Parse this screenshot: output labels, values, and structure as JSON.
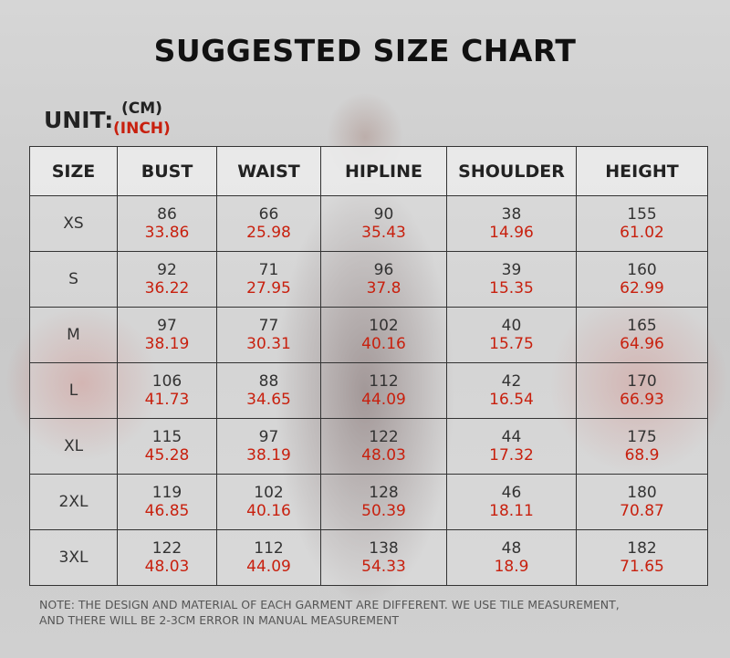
{
  "title": "SUGGESTED SIZE CHART",
  "unit": {
    "label": "UNIT:",
    "cm": "(CM)",
    "inch": "(INCH)"
  },
  "colors": {
    "cm_text": "#333333",
    "inch_text": "#c8200e"
  },
  "chart_data": {
    "type": "table",
    "columns": [
      "SIZE",
      "BUST",
      "WAIST",
      "HIPLINE",
      "SHOULDER",
      "HEIGHT"
    ],
    "rows": [
      {
        "size": "XS",
        "cm": [
          "86",
          "66",
          "90",
          "38",
          "155"
        ],
        "inch": [
          "33.86",
          "25.98",
          "35.43",
          "14.96",
          "61.02"
        ]
      },
      {
        "size": "S",
        "cm": [
          "92",
          "71",
          "96",
          "39",
          "160"
        ],
        "inch": [
          "36.22",
          "27.95",
          "37.8",
          "15.35",
          "62.99"
        ]
      },
      {
        "size": "M",
        "cm": [
          "97",
          "77",
          "102",
          "40",
          "165"
        ],
        "inch": [
          "38.19",
          "30.31",
          "40.16",
          "15.75",
          "64.96"
        ]
      },
      {
        "size": "L",
        "cm": [
          "106",
          "88",
          "112",
          "42",
          "170"
        ],
        "inch": [
          "41.73",
          "34.65",
          "44.09",
          "16.54",
          "66.93"
        ]
      },
      {
        "size": "XL",
        "cm": [
          "115",
          "97",
          "122",
          "44",
          "175"
        ],
        "inch": [
          "45.28",
          "38.19",
          "48.03",
          "17.32",
          "68.9"
        ]
      },
      {
        "size": "2XL",
        "cm": [
          "119",
          "102",
          "128",
          "46",
          "180"
        ],
        "inch": [
          "46.85",
          "40.16",
          "50.39",
          "18.11",
          "70.87"
        ]
      },
      {
        "size": "3XL",
        "cm": [
          "122",
          "112",
          "138",
          "48",
          "182"
        ],
        "inch": [
          "48.03",
          "44.09",
          "54.33",
          "18.9",
          "71.65"
        ]
      }
    ]
  },
  "note": [
    "NOTE: THE DESIGN AND MATERIAL OF EACH GARMENT ARE DIFFERENT. WE USE TILE MEASUREMENT,",
    "AND THERE WILL BE 2-3CM ERROR IN MANUAL MEASUREMENT"
  ]
}
